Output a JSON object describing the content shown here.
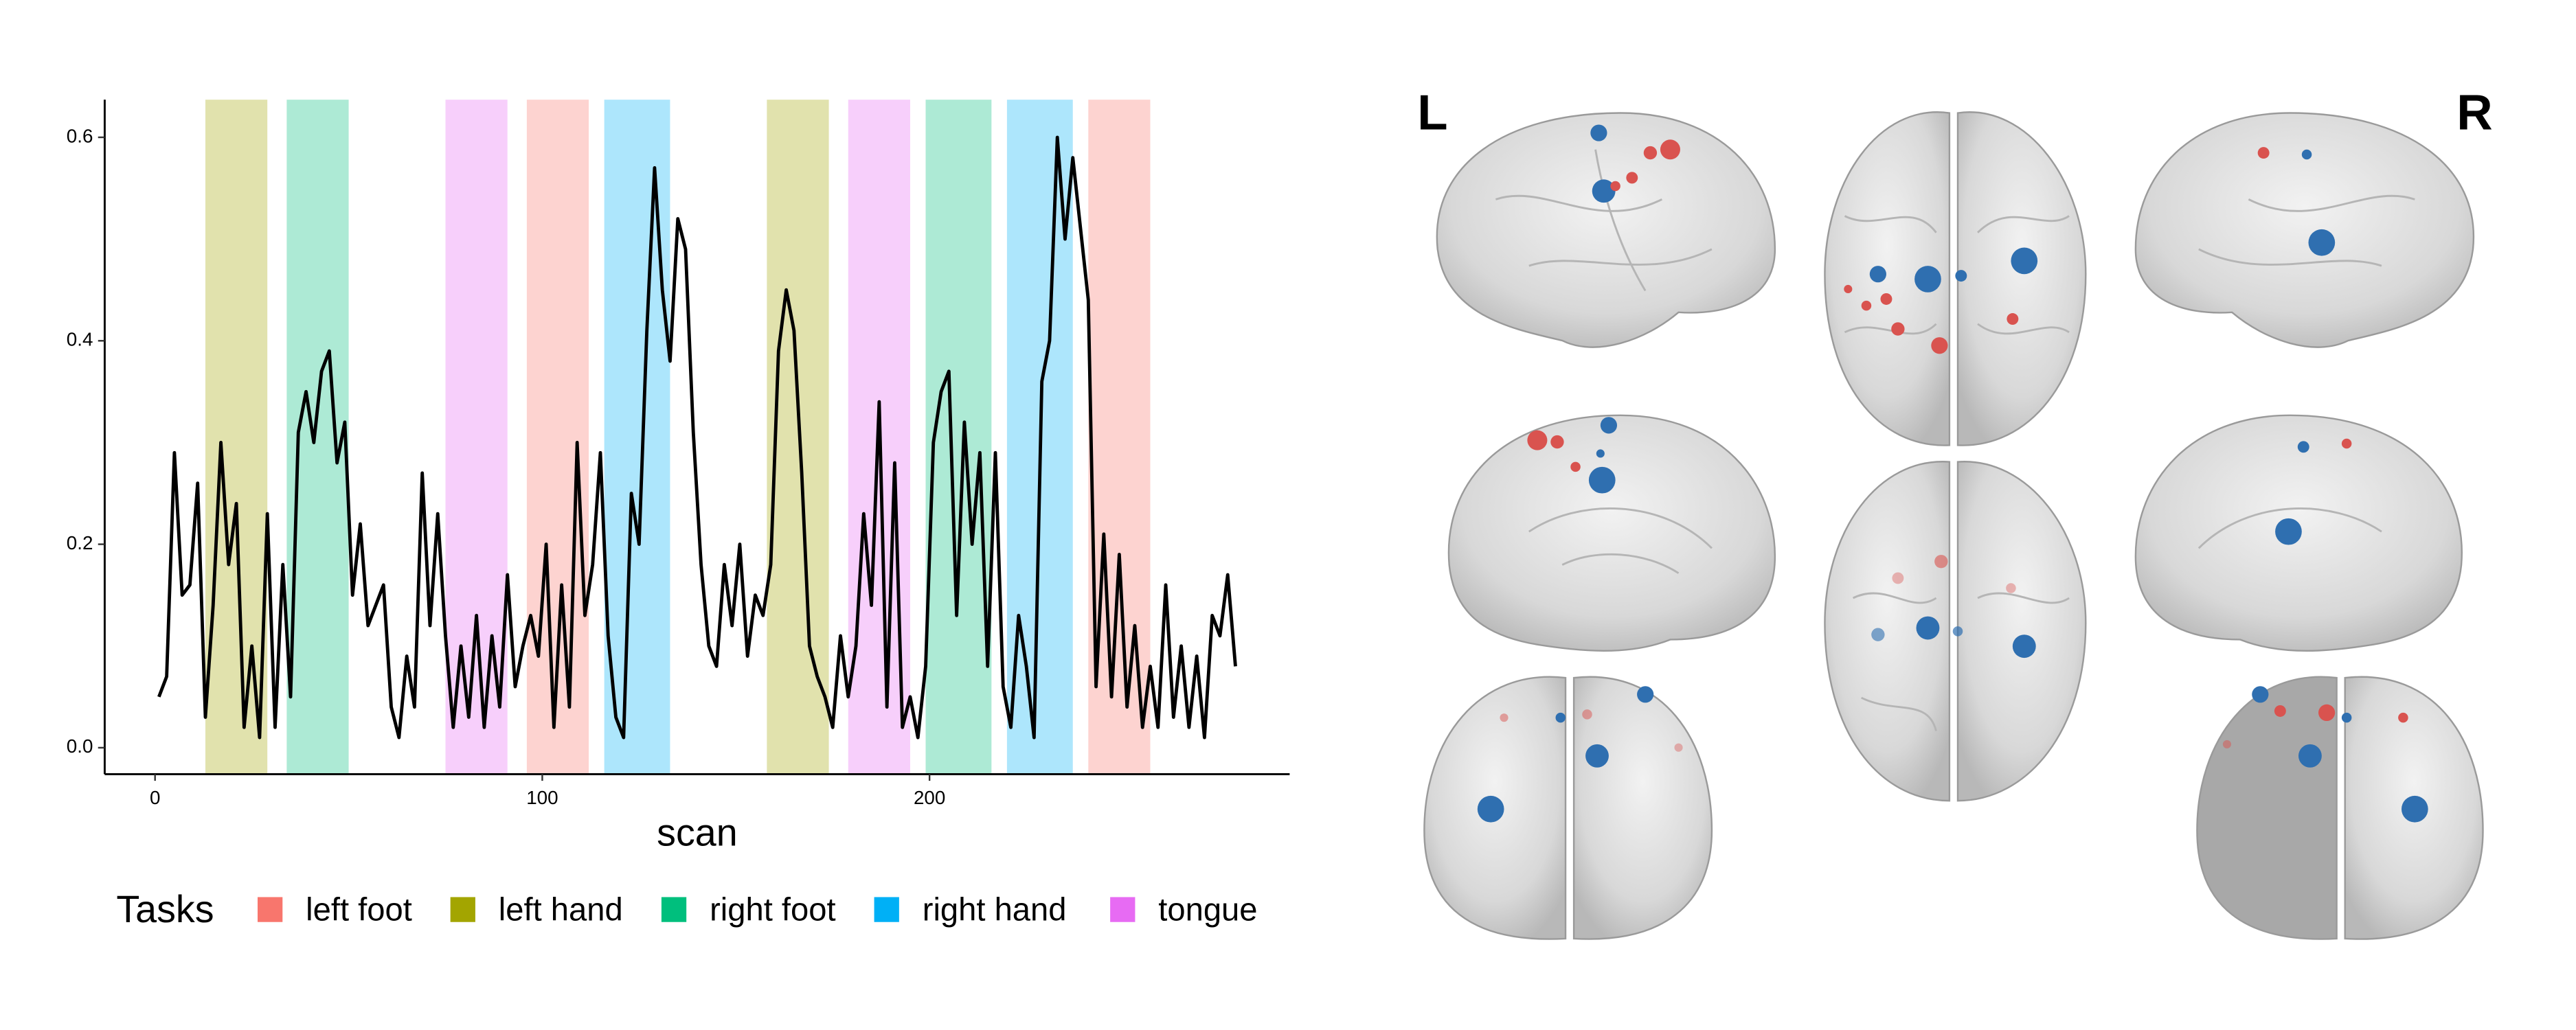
{
  "chart_data": {
    "type": "line",
    "xlabel": "scan",
    "legend_title": "Tasks",
    "xlim": [
      -13,
      293
    ],
    "ylim": [
      -0.026,
      0.637
    ],
    "xticks": [
      0,
      100,
      200
    ],
    "yticks": [
      {
        "value": 0,
        "label": "0.0"
      },
      {
        "value": 0.2,
        "label": "0.2"
      },
      {
        "value": 0.4,
        "label": "0.4"
      },
      {
        "value": 0.6,
        "label": "0.6"
      }
    ],
    "tasks": [
      {
        "name": "left foot",
        "color": "#F8766D"
      },
      {
        "name": "left hand",
        "color": "#A3A500"
      },
      {
        "name": "right foot",
        "color": "#00BF7D"
      },
      {
        "name": "right hand",
        "color": "#00B0F6"
      },
      {
        "name": "tongue",
        "color": "#E76BF3"
      }
    ],
    "bands": [
      {
        "task": 1,
        "start": 13,
        "end": 29
      },
      {
        "task": 2,
        "start": 34,
        "end": 50
      },
      {
        "task": 4,
        "start": 75,
        "end": 91
      },
      {
        "task": 0,
        "start": 96,
        "end": 112
      },
      {
        "task": 3,
        "start": 116,
        "end": 133
      },
      {
        "task": 1,
        "start": 158,
        "end": 174
      },
      {
        "task": 4,
        "start": 179,
        "end": 195
      },
      {
        "task": 2,
        "start": 199,
        "end": 216
      },
      {
        "task": 3,
        "start": 220,
        "end": 237
      },
      {
        "task": 0,
        "start": 241,
        "end": 257
      }
    ],
    "series": [
      {
        "color": "#000000",
        "x": [
          1,
          3,
          5,
          7,
          9,
          11,
          13,
          15,
          17,
          19,
          21,
          23,
          25,
          27,
          29,
          31,
          33,
          35,
          37,
          39,
          41,
          43,
          45,
          47,
          49,
          51,
          53,
          55,
          57,
          59,
          61,
          63,
          65,
          67,
          69,
          71,
          73,
          75,
          77,
          79,
          81,
          83,
          85,
          87,
          89,
          91,
          93,
          95,
          97,
          99,
          101,
          103,
          105,
          107,
          109,
          111,
          113,
          115,
          117,
          119,
          121,
          123,
          125,
          127,
          129,
          131,
          133,
          135,
          137,
          139,
          141,
          143,
          145,
          147,
          149,
          151,
          153,
          155,
          157,
          159,
          161,
          163,
          165,
          167,
          169,
          171,
          173,
          175,
          177,
          179,
          181,
          183,
          185,
          187,
          189,
          191,
          193,
          195,
          197,
          199,
          201,
          203,
          205,
          207,
          209,
          211,
          213,
          215,
          217,
          219,
          221,
          223,
          225,
          227,
          229,
          231,
          233,
          235,
          237,
          239,
          241,
          243,
          245,
          247,
          249,
          251,
          253,
          255,
          257,
          259,
          261,
          263,
          265,
          267,
          269,
          271,
          273,
          275,
          277,
          279
        ],
        "values": [
          0.05,
          0.07,
          0.29,
          0.15,
          0.16,
          0.26,
          0.03,
          0.14,
          0.3,
          0.18,
          0.24,
          0.02,
          0.1,
          0.01,
          0.23,
          0.02,
          0.18,
          0.05,
          0.31,
          0.35,
          0.3,
          0.37,
          0.39,
          0.28,
          0.32,
          0.15,
          0.22,
          0.12,
          0.14,
          0.16,
          0.04,
          0.01,
          0.09,
          0.04,
          0.27,
          0.12,
          0.23,
          0.11,
          0.02,
          0.1,
          0.03,
          0.13,
          0.02,
          0.11,
          0.04,
          0.17,
          0.06,
          0.1,
          0.13,
          0.09,
          0.2,
          0.02,
          0.16,
          0.04,
          0.3,
          0.13,
          0.18,
          0.29,
          0.11,
          0.03,
          0.01,
          0.25,
          0.2,
          0.41,
          0.57,
          0.45,
          0.38,
          0.52,
          0.49,
          0.31,
          0.18,
          0.1,
          0.08,
          0.18,
          0.12,
          0.2,
          0.09,
          0.15,
          0.13,
          0.18,
          0.39,
          0.45,
          0.41,
          0.27,
          0.1,
          0.07,
          0.05,
          0.02,
          0.11,
          0.05,
          0.1,
          0.23,
          0.14,
          0.34,
          0.04,
          0.28,
          0.02,
          0.05,
          0.01,
          0.08,
          0.3,
          0.35,
          0.37,
          0.13,
          0.32,
          0.2,
          0.29,
          0.08,
          0.29,
          0.06,
          0.02,
          0.13,
          0.08,
          0.01,
          0.36,
          0.4,
          0.6,
          0.5,
          0.58,
          0.51,
          0.44,
          0.06,
          0.21,
          0.05,
          0.19,
          0.04,
          0.12,
          0.02,
          0.08,
          0.02,
          0.16,
          0.03,
          0.1,
          0.02,
          0.09,
          0.01,
          0.13,
          0.11,
          0.17,
          0.08
        ]
      }
    ]
  },
  "brain_views": {
    "left_label": "L",
    "right_label": "R"
  }
}
